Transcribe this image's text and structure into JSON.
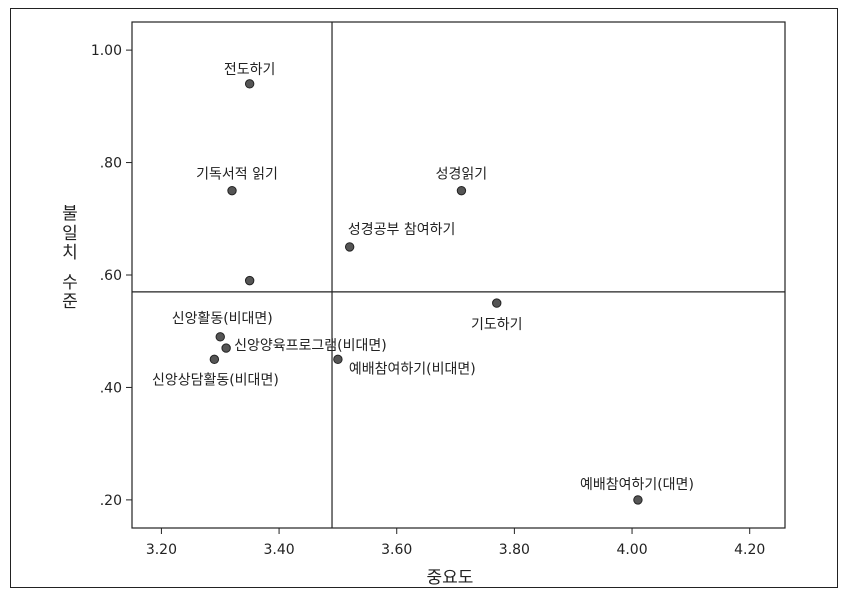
{
  "chart_data": {
    "type": "scatter",
    "xlabel": "중요도",
    "ylabel": "불일치 수준",
    "xlim": [
      3.15,
      4.26
    ],
    "ylim": [
      0.15,
      1.05
    ],
    "x_ticks": [
      3.2,
      3.4,
      3.6,
      3.8,
      4.0,
      4.2
    ],
    "x_tick_labels": [
      "3.20",
      "3.40",
      "3.60",
      "3.80",
      "4.00",
      "4.20"
    ],
    "y_ticks": [
      0.2,
      0.4,
      0.6,
      0.8,
      1.0
    ],
    "y_tick_labels": [
      ".20",
      ".40",
      ".60",
      ".80",
      "1.00"
    ],
    "reference_lines": {
      "x": 3.49,
      "y": 0.57
    },
    "grid": false,
    "point_color": "#555555",
    "points": [
      {
        "label": "전도하기",
        "x": 3.35,
        "y": 0.94
      },
      {
        "label": "기독서적 읽기",
        "x": 3.32,
        "y": 0.75
      },
      {
        "label": "",
        "x": 3.35,
        "y": 0.59
      },
      {
        "label": "성경읽기",
        "x": 3.71,
        "y": 0.75
      },
      {
        "label": "성경공부 참여하기",
        "x": 3.52,
        "y": 0.65
      },
      {
        "label": "기도하기",
        "x": 3.77,
        "y": 0.55
      },
      {
        "label": "신앙활동(비대면)",
        "x": 3.3,
        "y": 0.49
      },
      {
        "label": "신앙양육프로그램(비대면)",
        "x": 3.31,
        "y": 0.47
      },
      {
        "label": "신앙상담활동(비대면)",
        "x": 3.29,
        "y": 0.45
      },
      {
        "label": "예배참여하기(비대면)",
        "x": 3.5,
        "y": 0.45
      },
      {
        "label": "예배참여하기(대면)",
        "x": 4.01,
        "y": 0.2
      }
    ]
  }
}
